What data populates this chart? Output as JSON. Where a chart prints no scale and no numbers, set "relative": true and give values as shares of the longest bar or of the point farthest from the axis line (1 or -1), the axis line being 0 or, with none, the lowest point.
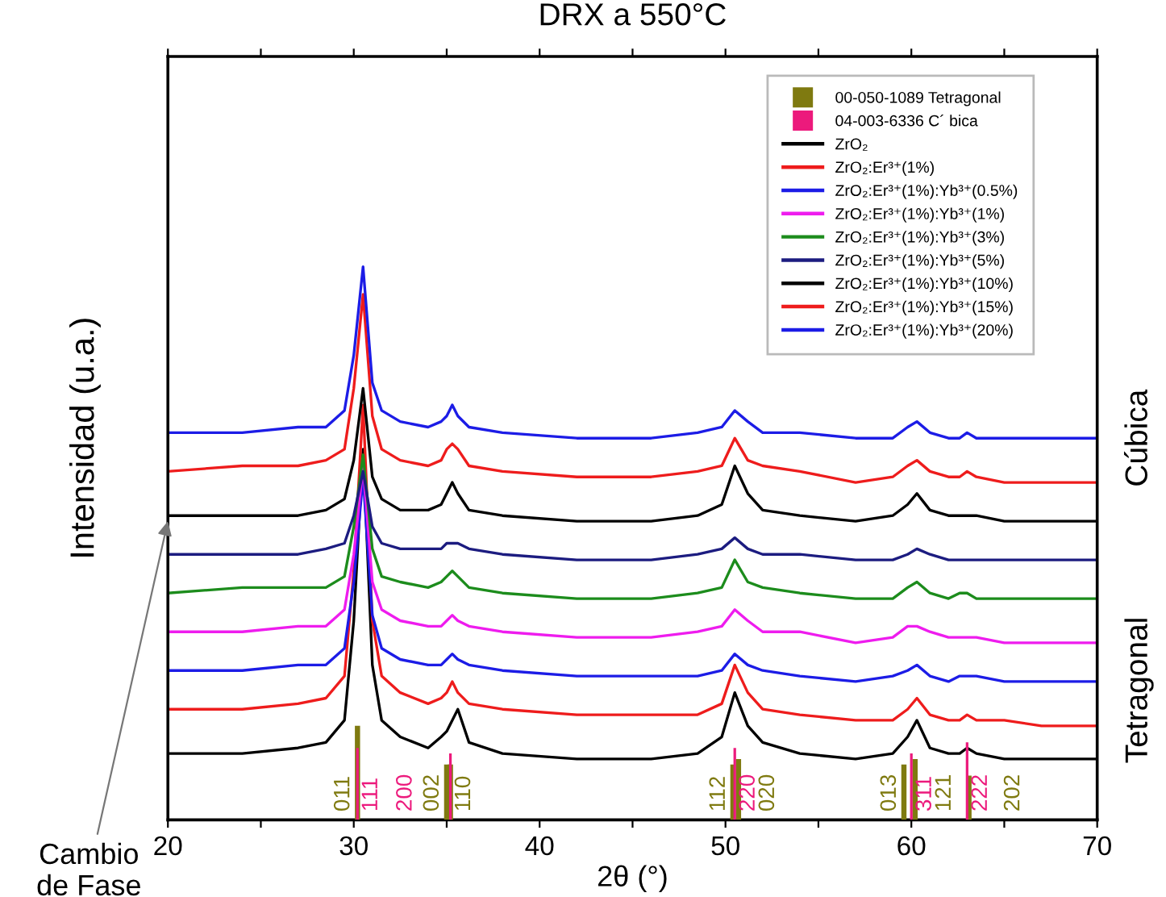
{
  "chart_data": {
    "type": "line",
    "title": "DRX a 550°C",
    "xlabel": "2θ (°)",
    "ylabel": "Intensidad (u.a.)",
    "relative": true,
    "xlim": [
      20,
      70
    ],
    "xticks": [
      20,
      {
        "value": 25,
        "label": null
      },
      30,
      {
        "value": 35,
        "label": null
      },
      40,
      {
        "value": 45,
        "label": null
      },
      50,
      {
        "value": 55,
        "label": null
      },
      60,
      {
        "value": 65,
        "label": null
      },
      70
    ],
    "grid": false,
    "legend": "top right",
    "marker": "none",
    "line_style": "solid",
    "annotations": [
      {
        "text": "Cambio\nde Fase",
        "x": 20,
        "y": 0.54
      },
      "Cúbica",
      "Tetragonal",
      {
        "text": "011",
        "x": 30.2,
        "y": 0.17
      },
      {
        "text": "002",
        "x": 35.0,
        "y": 0.1
      },
      {
        "text": "110",
        "x": 35.2,
        "y": 0.1
      },
      {
        "text": "112",
        "x": 50.4,
        "y": 0.1
      },
      {
        "text": "020",
        "x": 50.7,
        "y": 0.11
      },
      {
        "text": "013",
        "x": 59.6,
        "y": 0.1
      },
      {
        "text": "121",
        "x": 60.2,
        "y": 0.11
      },
      {
        "text": "202",
        "x": 63.1,
        "y": 0.08
      },
      {
        "text": "111",
        "x": 30.2,
        "y": 0.13
      },
      {
        "text": "200",
        "x": 35.2,
        "y": 0.12
      },
      {
        "text": "220",
        "x": 50.5,
        "y": 0.13
      },
      {
        "text": "311",
        "x": 60.0,
        "y": 0.12
      },
      {
        "text": "222",
        "x": 63.0,
        "y": 0.14
      }
    ],
    "x": [
      20,
      24,
      27,
      28.5,
      29.5,
      30.0,
      30.5,
      31.0,
      31.5,
      32.5,
      34.0,
      34.7,
      35.0,
      35.3,
      35.6,
      36.2,
      38,
      42,
      46,
      48.5,
      49.8,
      50.5,
      51.2,
      52.0,
      54,
      57,
      59.0,
      59.8,
      60.3,
      61.0,
      62.0,
      62.6,
      63.0,
      63.5,
      65,
      67,
      70
    ],
    "series": [
      {
        "name": "00-050-1089 Tetragonal",
        "type": "bar",
        "color": "#7f7a10",
        "x": [
          30.2,
          35.0,
          35.2,
          50.4,
          50.7,
          59.6,
          60.2,
          63.1
        ],
        "values": [
          0.17,
          0.1,
          0.1,
          0.1,
          0.11,
          0.1,
          0.11,
          0.08
        ]
      },
      {
        "name": "04-003-6336 C´ bica",
        "type": "bar",
        "color": "#ec1a7c",
        "x": [
          30.2,
          35.2,
          50.5,
          60.0,
          63.0
        ],
        "values": [
          0.13,
          0.12,
          0.13,
          0.12,
          0.14
        ]
      },
      {
        "name": "ZrO₂",
        "color": "#000000",
        "values": [
          0.12,
          0.12,
          0.13,
          0.14,
          0.18,
          0.36,
          0.67,
          0.28,
          0.18,
          0.15,
          0.13,
          0.15,
          0.16,
          0.18,
          0.2,
          0.14,
          0.12,
          0.11,
          0.11,
          0.12,
          0.15,
          0.23,
          0.17,
          0.14,
          0.12,
          0.11,
          0.12,
          0.15,
          0.18,
          0.13,
          0.12,
          0.12,
          0.13,
          0.12,
          0.11,
          0.11,
          0.11
        ]
      },
      {
        "name": "ZrO₂:Er³⁺(1%)",
        "color": "#ee1c1c",
        "values": [
          0.2,
          0.2,
          0.21,
          0.22,
          0.26,
          0.45,
          0.75,
          0.36,
          0.26,
          0.23,
          0.21,
          0.22,
          0.23,
          0.25,
          0.23,
          0.21,
          0.2,
          0.19,
          0.19,
          0.19,
          0.21,
          0.28,
          0.23,
          0.2,
          0.19,
          0.18,
          0.18,
          0.2,
          0.22,
          0.19,
          0.18,
          0.18,
          0.19,
          0.18,
          0.18,
          0.17,
          0.17
        ]
      },
      {
        "name": "ZrO₂:Er³⁺(1%):Yb³⁺(0.5%)",
        "color": "#1c1ce6",
        "values": [
          0.27,
          0.27,
          0.28,
          0.28,
          0.31,
          0.43,
          0.62,
          0.37,
          0.31,
          0.29,
          0.28,
          0.28,
          0.29,
          0.3,
          0.29,
          0.28,
          0.27,
          0.26,
          0.26,
          0.26,
          0.27,
          0.3,
          0.28,
          0.27,
          0.26,
          0.25,
          0.26,
          0.27,
          0.28,
          0.26,
          0.25,
          0.26,
          0.26,
          0.26,
          0.25,
          0.25,
          0.25
        ]
      },
      {
        "name": "ZrO₂:Er³⁺(1%):Yb³⁺(1%)",
        "color": "#ee1cee",
        "values": [
          0.34,
          0.34,
          0.35,
          0.35,
          0.38,
          0.48,
          0.64,
          0.43,
          0.38,
          0.36,
          0.35,
          0.35,
          0.36,
          0.37,
          0.36,
          0.35,
          0.34,
          0.33,
          0.33,
          0.34,
          0.35,
          0.38,
          0.36,
          0.34,
          0.34,
          0.32,
          0.33,
          0.35,
          0.35,
          0.34,
          0.33,
          0.33,
          0.33,
          0.33,
          0.32,
          0.32,
          0.32
        ]
      },
      {
        "name": "ZrO₂:Er³⁺(1%):Yb³⁺(3%)",
        "color": "#1c8c1c",
        "values": [
          0.41,
          0.42,
          0.42,
          0.42,
          0.44,
          0.53,
          0.66,
          0.49,
          0.44,
          0.43,
          0.42,
          0.43,
          0.44,
          0.45,
          0.44,
          0.42,
          0.41,
          0.4,
          0.4,
          0.41,
          0.42,
          0.47,
          0.43,
          0.42,
          0.41,
          0.4,
          0.4,
          0.42,
          0.43,
          0.41,
          0.4,
          0.41,
          0.41,
          0.4,
          0.4,
          0.4,
          0.4
        ]
      },
      {
        "name": "ZrO₂:Er³⁺(1%):Yb³⁺(5%)",
        "color": "#1c1c80",
        "values": [
          0.48,
          0.48,
          0.48,
          0.49,
          0.5,
          0.55,
          0.63,
          0.53,
          0.5,
          0.49,
          0.49,
          0.49,
          0.5,
          0.5,
          0.5,
          0.49,
          0.48,
          0.47,
          0.47,
          0.48,
          0.49,
          0.51,
          0.49,
          0.48,
          0.48,
          0.47,
          0.47,
          0.48,
          0.49,
          0.48,
          0.47,
          0.47,
          0.47,
          0.47,
          0.47,
          0.47,
          0.47
        ]
      },
      {
        "name": "ZrO₂:Er³⁺(1%):Yb³⁺(10%)",
        "color": "#000000",
        "values": [
          0.55,
          0.55,
          0.55,
          0.56,
          0.58,
          0.65,
          0.78,
          0.62,
          0.58,
          0.56,
          0.56,
          0.57,
          0.59,
          0.61,
          0.59,
          0.56,
          0.55,
          0.54,
          0.54,
          0.55,
          0.57,
          0.64,
          0.59,
          0.56,
          0.55,
          0.54,
          0.55,
          0.57,
          0.59,
          0.56,
          0.55,
          0.55,
          0.55,
          0.55,
          0.54,
          0.54,
          0.54
        ]
      },
      {
        "name": "ZrO₂:Er³⁺(1%):Yb³⁺(15%)",
        "color": "#ee1c1c",
        "values": [
          0.63,
          0.64,
          0.64,
          0.65,
          0.67,
          0.78,
          0.95,
          0.73,
          0.67,
          0.65,
          0.64,
          0.65,
          0.67,
          0.68,
          0.67,
          0.64,
          0.63,
          0.62,
          0.62,
          0.63,
          0.64,
          0.69,
          0.65,
          0.64,
          0.63,
          0.61,
          0.62,
          0.64,
          0.65,
          0.63,
          0.62,
          0.62,
          0.63,
          0.62,
          0.61,
          0.61,
          0.61
        ]
      },
      {
        "name": "ZrO₂:Er³⁺(1%):Yb³⁺(20%)",
        "color": "#1c1ce6",
        "values": [
          0.7,
          0.7,
          0.71,
          0.71,
          0.74,
          0.84,
          1.0,
          0.79,
          0.74,
          0.72,
          0.71,
          0.72,
          0.73,
          0.75,
          0.73,
          0.71,
          0.7,
          0.69,
          0.69,
          0.7,
          0.71,
          0.74,
          0.72,
          0.7,
          0.7,
          0.69,
          0.69,
          0.71,
          0.72,
          0.7,
          0.69,
          0.69,
          0.7,
          0.69,
          0.69,
          0.69,
          0.69
        ]
      }
    ]
  }
}
